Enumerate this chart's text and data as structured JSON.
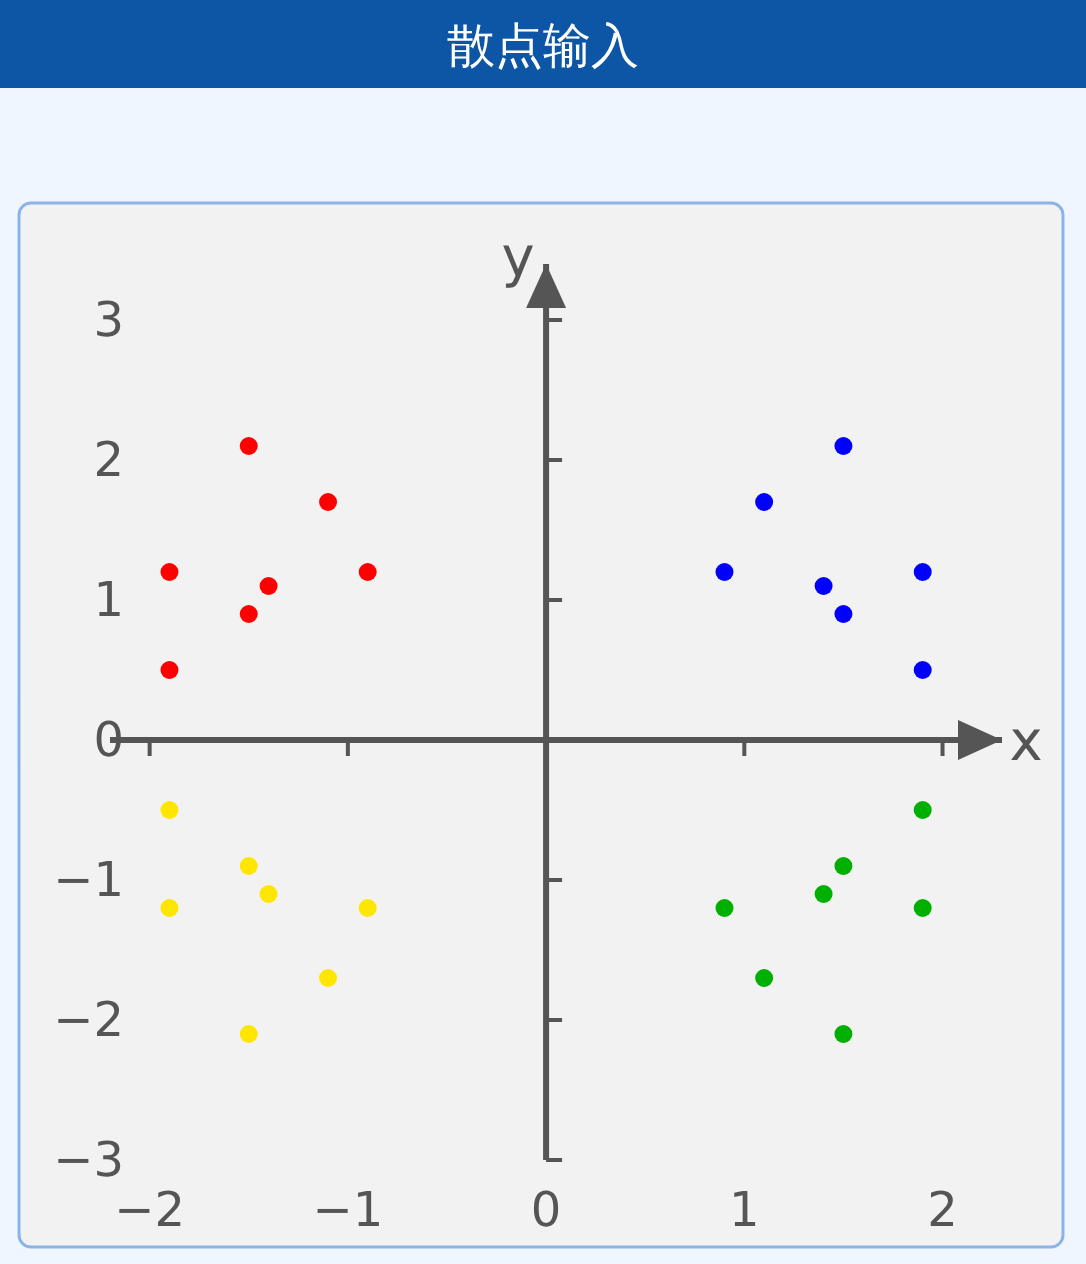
{
  "chart_data": {
    "type": "scatter",
    "title": "散点输入",
    "xlabel": "x",
    "ylabel": "y",
    "xlim": [
      -2.2,
      2.3
    ],
    "ylim": [
      -3,
      3.4
    ],
    "xticks": [
      -2,
      -1,
      0,
      1,
      2
    ],
    "yticks": [
      -3,
      -2,
      -1,
      0,
      1,
      2,
      3
    ],
    "marker": "circle",
    "series": [
      {
        "color": "#ff0000",
        "x": [
          -1.9,
          -1.9,
          -1.5,
          -1.5,
          -1.4,
          -1.1,
          -0.9
        ],
        "values": [
          1.2,
          0.5,
          2.1,
          0.9,
          1.1,
          1.7,
          1.2
        ]
      },
      {
        "color": "#0000ff",
        "x": [
          0.9,
          1.1,
          1.4,
          1.5,
          1.5,
          1.9,
          1.9
        ],
        "values": [
          1.2,
          1.7,
          1.1,
          2.1,
          0.9,
          1.2,
          0.5
        ]
      },
      {
        "color": "#00b000",
        "x": [
          0.9,
          1.1,
          1.4,
          1.5,
          1.5,
          1.9,
          1.9
        ],
        "values": [
          -1.2,
          -1.7,
          -1.1,
          -0.9,
          -2.1,
          -0.5,
          -1.2
        ]
      },
      {
        "color": "#ffe600",
        "x": [
          -1.9,
          -1.9,
          -1.5,
          -1.4,
          -0.9,
          -1.1,
          -1.5
        ],
        "values": [
          -0.5,
          -1.2,
          -0.9,
          -1.1,
          -1.2,
          -1.7,
          -2.1
        ]
      }
    ]
  }
}
